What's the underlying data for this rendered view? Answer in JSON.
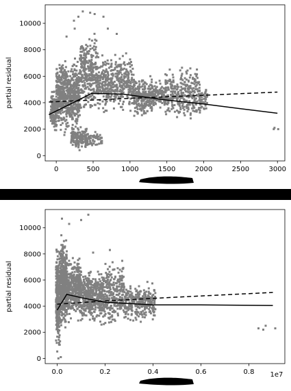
{
  "chart_data": [
    {
      "type": "scatter",
      "ylabel": "partial residual",
      "xlabel": "",
      "xlim": [
        -150,
        3100
      ],
      "ylim": [
        -400,
        11400
      ],
      "xticks": [
        0,
        500,
        1000,
        1500,
        2000,
        2500,
        3000
      ],
      "xtick_labels": [
        "0",
        "500",
        "1000",
        "1500",
        "2000",
        "2500",
        "3000"
      ],
      "yticks": [
        0,
        2000,
        4000,
        6000,
        8000,
        10000
      ],
      "ytick_labels": [
        "0",
        "2000",
        "4000",
        "6000",
        "8000",
        "10000"
      ],
      "point_color": "#808080",
      "clusters": [
        {
          "x": [
            -80,
            5
          ],
          "y": [
            1400,
            5400
          ],
          "n": 120
        },
        {
          "x": [
            0,
            320
          ],
          "y": [
            1300,
            7800
          ],
          "n": 650
        },
        {
          "x": [
            200,
            420
          ],
          "y": [
            300,
            2400
          ],
          "n": 140
        },
        {
          "x": [
            320,
            560
          ],
          "y": [
            2600,
            9800
          ],
          "n": 300
        },
        {
          "x": [
            400,
            620
          ],
          "y": [
            500,
            1900
          ],
          "n": 60
        },
        {
          "x": [
            560,
            1050
          ],
          "y": [
            3000,
            8000
          ],
          "n": 420
        },
        {
          "x": [
            1050,
            1320
          ],
          "y": [
            2700,
            6200
          ],
          "n": 240
        },
        {
          "x": [
            1320,
            1470
          ],
          "y": [
            3200,
            5800
          ],
          "n": 90
        },
        {
          "x": [
            1470,
            1950
          ],
          "y": [
            2300,
            7000
          ],
          "n": 330
        },
        {
          "x": [
            1950,
            2050
          ],
          "y": [
            3000,
            5400
          ],
          "n": 40
        }
      ],
      "outliers": [
        [
          240,
          10200
        ],
        [
          300,
          10500
        ],
        [
          360,
          10900
        ],
        [
          460,
          10800
        ],
        [
          520,
          10700
        ],
        [
          640,
          10500
        ],
        [
          700,
          9600
        ],
        [
          140,
          9000
        ],
        [
          820,
          9200
        ],
        [
          250,
          9600
        ],
        [
          2950,
          2000
        ],
        [
          2960,
          2100
        ],
        [
          3010,
          2000
        ]
      ],
      "series": [
        {
          "style": "solid",
          "x": [
            -100,
            480,
            900,
            1500,
            2000,
            2500,
            3000
          ],
          "y": [
            3100,
            4700,
            4650,
            4200,
            3900,
            3550,
            3200
          ]
        },
        {
          "style": "dashed",
          "x": [
            -100,
            500,
            1000,
            1500,
            2000,
            2500,
            3000
          ],
          "y": [
            4050,
            4200,
            4330,
            4450,
            4560,
            4680,
            4800
          ]
        }
      ]
    },
    {
      "type": "scatter",
      "ylabel": "partial residual",
      "xlabel": "",
      "xlim": [
        -0.05,
        0.95
      ],
      "ylim": [
        -400,
        11400
      ],
      "xticks": [
        0.0,
        0.2,
        0.4,
        0.6,
        0.8
      ],
      "xtick_labels": [
        "0.0",
        "0.2",
        "0.4",
        "0.6",
        "0.8"
      ],
      "yticks": [
        0,
        2000,
        4000,
        6000,
        8000,
        10000
      ],
      "ytick_labels": [
        "0",
        "2000",
        "4000",
        "6000",
        "8000",
        "10000"
      ],
      "x_offset_label": "1e7",
      "point_color": "#808080",
      "clusters": [
        {
          "x": [
            -0.005,
            0.012
          ],
          "y": [
            0,
            9000
          ],
          "n": 300
        },
        {
          "x": [
            0.012,
            0.04
          ],
          "y": [
            1500,
            9800
          ],
          "n": 400
        },
        {
          "x": [
            0.04,
            0.1
          ],
          "y": [
            2500,
            8400
          ],
          "n": 380
        },
        {
          "x": [
            0.1,
            0.2
          ],
          "y": [
            2300,
            7200
          ],
          "n": 420
        },
        {
          "x": [
            0.2,
            0.28
          ],
          "y": [
            2000,
            8000
          ],
          "n": 260
        },
        {
          "x": [
            0.28,
            0.41
          ],
          "y": [
            2600,
            6000
          ],
          "n": 300
        }
      ],
      "outliers": [
        [
          0.02,
          10700
        ],
        [
          0.05,
          10300
        ],
        [
          0.1,
          10600
        ],
        [
          0.13,
          11000
        ],
        [
          0.22,
          8300
        ],
        [
          0.15,
          8100
        ],
        [
          0.84,
          2300
        ],
        [
          0.86,
          2200
        ],
        [
          0.87,
          2500
        ],
        [
          0.91,
          2300
        ],
        [
          0.005,
          0
        ],
        [
          0.015,
          100
        ]
      ],
      "series": [
        {
          "style": "solid",
          "x": [
            0.0,
            0.04,
            0.1,
            0.2,
            0.4,
            0.6,
            0.9
          ],
          "y": [
            3700,
            4900,
            4650,
            4300,
            4100,
            4100,
            4050
          ]
        },
        {
          "style": "dashed",
          "x": [
            0.0,
            0.2,
            0.4,
            0.6,
            0.9
          ],
          "y": [
            4150,
            4400,
            4600,
            4780,
            5050
          ]
        }
      ]
    }
  ]
}
